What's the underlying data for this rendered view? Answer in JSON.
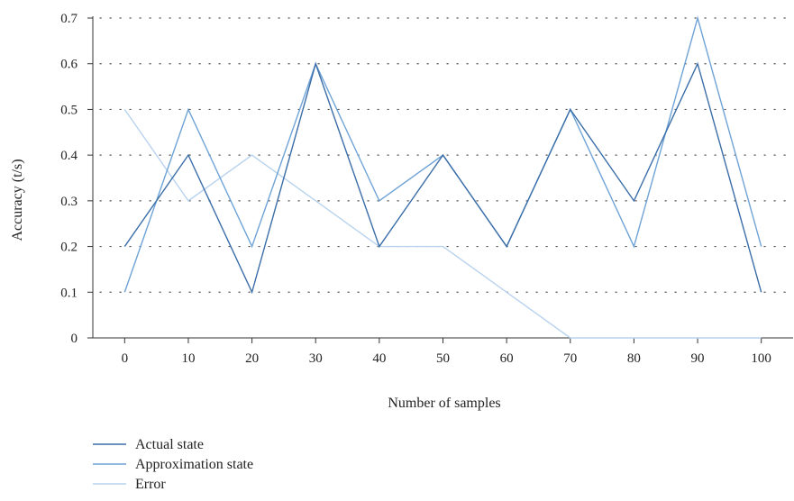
{
  "chart_data": {
    "type": "line",
    "title": "",
    "xlabel": "Number of samples",
    "ylabel": "Accuracy (t/s)",
    "x": [
      0,
      10,
      20,
      30,
      40,
      50,
      60,
      70,
      80,
      90,
      100
    ],
    "xticks": [
      "0",
      "10",
      "20",
      "30",
      "40",
      "50",
      "60",
      "70",
      "80",
      "90",
      "100"
    ],
    "yticks": [
      "0",
      "0.1",
      "0.2",
      "0.3",
      "0.4",
      "0.5",
      "0.6",
      "0.7"
    ],
    "xlim": [
      -5,
      105
    ],
    "ylim": [
      0,
      0.7
    ],
    "grid": "horizontal dotted",
    "legend_position": "bottom-left",
    "series": [
      {
        "name": "Actual state",
        "color": "#3b6ea8",
        "values": [
          0.2,
          0.4,
          0.1,
          0.6,
          0.2,
          0.4,
          0.2,
          0.5,
          0.3,
          0.6,
          0.1
        ]
      },
      {
        "name": "Approximation state",
        "color": "#6fa3d6",
        "values": [
          0.1,
          0.5,
          0.2,
          0.6,
          0.3,
          0.4,
          0.2,
          0.5,
          0.2,
          0.7,
          0.2
        ]
      },
      {
        "name": "Error",
        "color": "#b9d3ee",
        "values": [
          0.5,
          0.3,
          0.4,
          0.3,
          0.2,
          0.2,
          0.1,
          0.0,
          0.0,
          0.0,
          0.0
        ]
      }
    ]
  }
}
